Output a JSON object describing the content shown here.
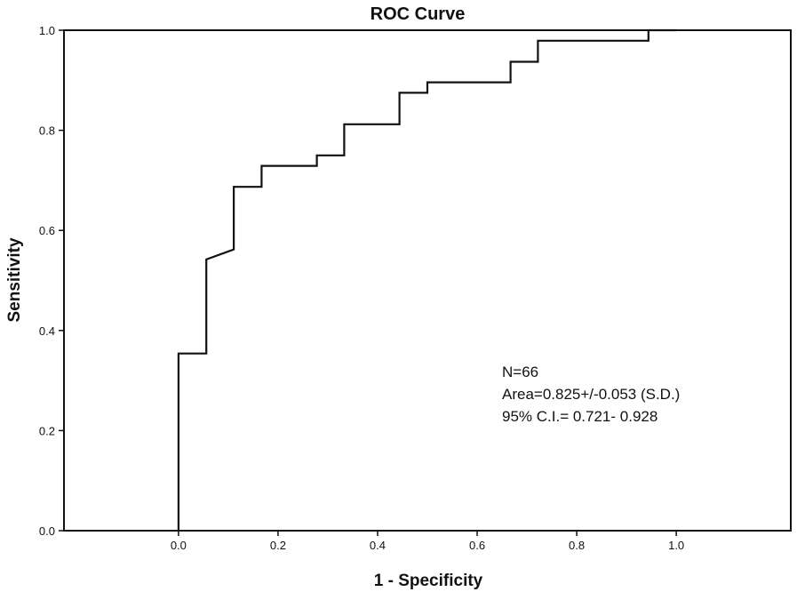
{
  "chart_data": {
    "type": "line",
    "title": "ROC Curve",
    "xlabel": "1 - Specificity",
    "ylabel": "Sensitivity",
    "xlim": [
      -0.23,
      1.23
    ],
    "ylim": [
      0,
      1
    ],
    "x_ticks": [
      "0.0",
      "0.2",
      "0.4",
      "0.6",
      "0.8",
      "1.0"
    ],
    "y_ticks": [
      "0.0",
      "0.2",
      "0.4",
      "0.6",
      "0.8",
      "1.0"
    ],
    "grid": false,
    "legend": "none",
    "line_color": "#111111",
    "series": [
      {
        "step_points": [
          [
            0.0,
            0.0
          ],
          [
            0.0,
            0.354
          ],
          [
            0.056,
            0.354
          ],
          [
            0.056,
            0.542
          ],
          [
            0.111,
            0.562
          ],
          [
            0.111,
            0.687
          ],
          [
            0.167,
            0.687
          ],
          [
            0.167,
            0.729
          ],
          [
            0.278,
            0.729
          ],
          [
            0.278,
            0.75
          ],
          [
            0.333,
            0.75
          ],
          [
            0.333,
            0.812
          ],
          [
            0.444,
            0.812
          ],
          [
            0.444,
            0.875
          ],
          [
            0.5,
            0.875
          ],
          [
            0.5,
            0.896
          ],
          [
            0.667,
            0.896
          ],
          [
            0.667,
            0.937
          ],
          [
            0.722,
            0.937
          ],
          [
            0.722,
            0.979
          ],
          [
            0.944,
            0.979
          ],
          [
            0.944,
            1.0
          ],
          [
            1.0,
            1.0
          ]
        ]
      }
    ],
    "annotations": [
      "N=66",
      "Area=0.825+/-0.053 (S.D.)",
      "95% C.I.= 0.721- 0.928"
    ]
  }
}
